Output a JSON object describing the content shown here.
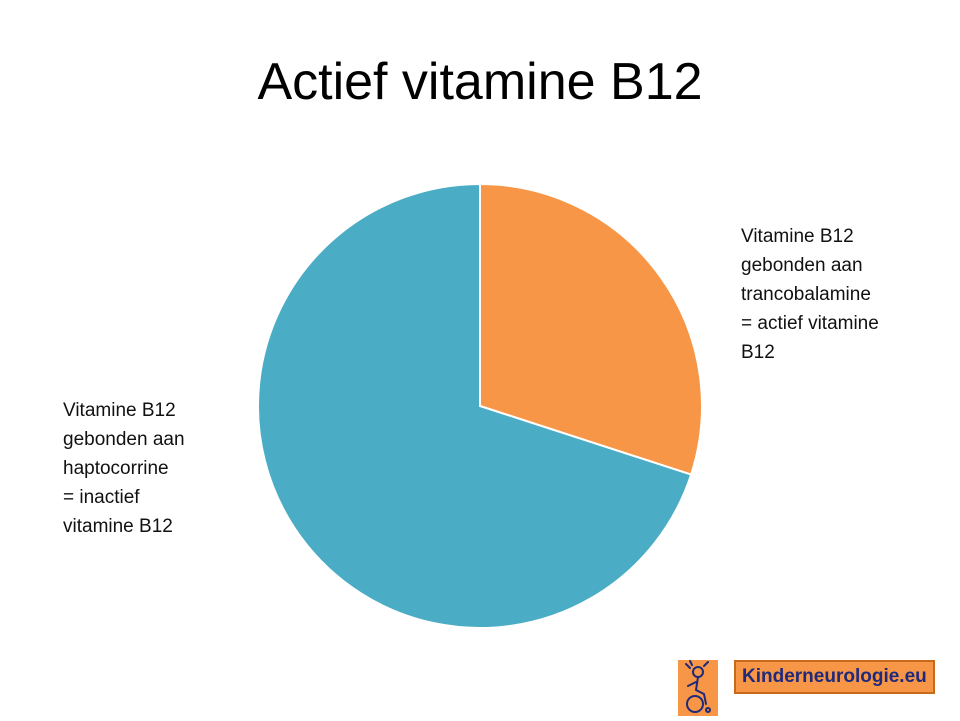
{
  "title": "Actief vitamine B12",
  "chart_data": {
    "type": "pie",
    "start_angle_deg": 0,
    "direction": "clockwise",
    "slices": [
      {
        "value": 30,
        "color": "#f79646",
        "label_lines": [
          "Vitamine B12",
          "gebonden aan",
          "trancobalamine",
          "= actief vitamine",
          "B12"
        ]
      },
      {
        "value": 70,
        "color": "#4bacc6",
        "label_lines": [
          "Vitamine B12",
          "gebonden aan",
          "haptocorrine",
          "= inactief",
          "vitamine B12"
        ]
      }
    ],
    "legend": "none",
    "slice_border_color": "#ffffff"
  },
  "logo": {
    "text": "Kinderneurologie.eu",
    "icon": "child-wheelchair-icon"
  }
}
